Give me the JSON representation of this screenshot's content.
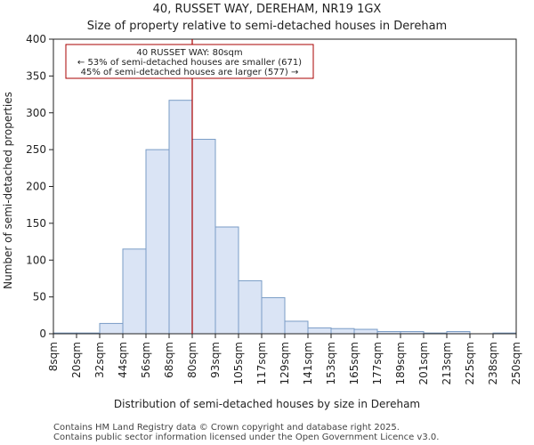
{
  "chart_data": {
    "type": "bar",
    "title": "40, RUSSET WAY, DEREHAM, NR19 1GX",
    "subtitle": "Size of property relative to semi-detached houses in Dereham",
    "xlabel": "Distribution of semi-detached houses by size in Dereham",
    "ylabel": "Number of semi-detached properties",
    "ylim": [
      0,
      400
    ],
    "yticks": [
      0,
      50,
      100,
      150,
      200,
      250,
      300,
      350,
      400
    ],
    "bin_edges": [
      "8sqm",
      "20sqm",
      "32sqm",
      "44sqm",
      "56sqm",
      "68sqm",
      "80sqm",
      "93sqm",
      "105sqm",
      "117sqm",
      "129sqm",
      "141sqm",
      "153sqm",
      "165sqm",
      "177sqm",
      "189sqm",
      "201sqm",
      "213sqm",
      "225sqm",
      "238sqm",
      "250sqm"
    ],
    "values": [
      1,
      1,
      14,
      115,
      250,
      317,
      264,
      145,
      72,
      49,
      17,
      8,
      7,
      6,
      3,
      3,
      1,
      3,
      0,
      1
    ],
    "bar_fill": "#dae4f5",
    "bar_stroke": "#7a9cc6",
    "marker": {
      "edge_index": 6,
      "color": "#aa0000",
      "label_line1": "40 RUSSET WAY: 80sqm",
      "label_line2": "← 53% of semi-detached houses are smaller (671)",
      "label_line3": "45% of semi-detached houses are larger (577) →"
    },
    "grid": false
  },
  "footer": {
    "line1": "Contains HM Land Registry data © Crown copyright and database right 2025.",
    "line2": "Contains public sector information licensed under the Open Government Licence v3.0."
  }
}
